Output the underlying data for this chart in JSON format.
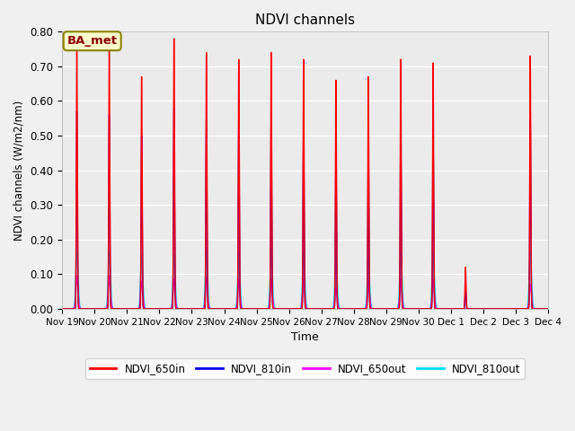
{
  "title": "NDVI channels",
  "xlabel": "Time",
  "ylabel": "NDVI channels (W/m2/nm)",
  "ylim": [
    0.0,
    0.8
  ],
  "annotation": "BA_met",
  "legend_labels": [
    "NDVI_650in",
    "NDVI_810in",
    "NDVI_650out",
    "NDVI_810out"
  ],
  "colors": [
    "#ff0000",
    "#0000ee",
    "#ff00ff",
    "#00ddff"
  ],
  "fig_facecolor": "#f0f0f0",
  "ax_facecolor": "#ebebeb",
  "xtick_labels": [
    "Nov 19",
    "Nov 20",
    "Nov 21",
    "Nov 22",
    "Nov 23",
    "Nov 24",
    "Nov 25",
    "Nov 26",
    "Nov 27",
    "Nov 28",
    "Nov 29",
    "Nov 30",
    "Dec 1",
    "Dec 2",
    "Dec 3",
    "Dec 4"
  ],
  "peak_650in": [
    0.76,
    0.75,
    0.67,
    0.78,
    0.74,
    0.72,
    0.74,
    0.72,
    0.66,
    0.67,
    0.72,
    0.71,
    0.12,
    0.0,
    0.73
  ],
  "peak_810in": [
    0.57,
    0.56,
    0.5,
    0.58,
    0.55,
    0.53,
    0.55,
    0.53,
    0.49,
    0.5,
    0.53,
    0.51,
    0.06,
    0.0,
    0.55
  ],
  "peak_650out": [
    0.095,
    0.095,
    0.08,
    0.085,
    0.09,
    0.085,
    0.085,
    0.085,
    0.06,
    0.08,
    0.085,
    0.085,
    0.0,
    0.0,
    0.07
  ],
  "peak_810out": [
    0.165,
    0.165,
    0.155,
    0.155,
    0.17,
    0.16,
    0.175,
    0.165,
    0.155,
    0.155,
    0.165,
    0.165,
    0.0,
    0.0,
    0.165
  ],
  "peak_offsets": [
    0.45,
    0.45,
    0.45,
    0.45,
    0.45,
    0.45,
    0.45,
    0.45,
    0.45,
    0.45,
    0.45,
    0.45,
    0.45,
    0.45,
    0.45
  ]
}
